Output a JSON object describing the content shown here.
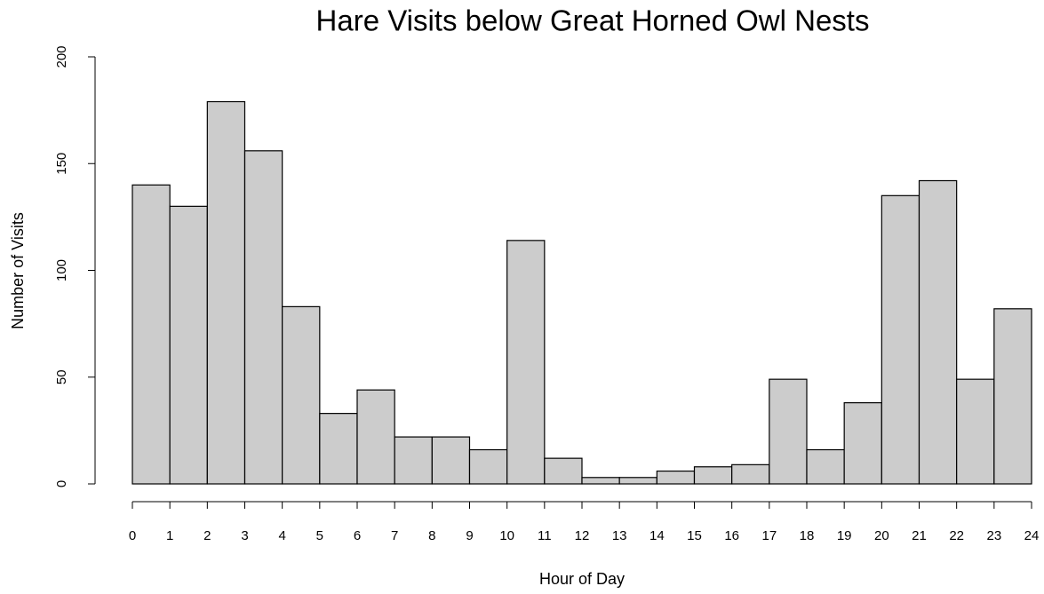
{
  "chart_data": {
    "type": "histogram",
    "title": "Hare Visits below Great Horned Owl Nests",
    "x_label": "Hour of Day",
    "y_label": "Number of Visits",
    "bins": [
      0,
      1,
      2,
      3,
      4,
      5,
      6,
      7,
      8,
      9,
      10,
      11,
      12,
      13,
      14,
      15,
      16,
      17,
      18,
      19,
      20,
      21,
      22,
      23,
      24
    ],
    "values": [
      140,
      130,
      179,
      156,
      83,
      33,
      44,
      22,
      22,
      16,
      114,
      12,
      3,
      3,
      6,
      8,
      9,
      49,
      16,
      38,
      135,
      142,
      49,
      82
    ],
    "color": "#cccccc",
    "xlim": [
      0,
      24
    ],
    "xticks": [
      0,
      1,
      2,
      3,
      4,
      5,
      6,
      7,
      8,
      9,
      10,
      11,
      12,
      13,
      14,
      15,
      16,
      17,
      18,
      19,
      20,
      21,
      22,
      23,
      24
    ],
    "ylim": [
      0,
      200
    ],
    "yticks": [
      0,
      50,
      100,
      150,
      200
    ],
    "grid": false
  }
}
